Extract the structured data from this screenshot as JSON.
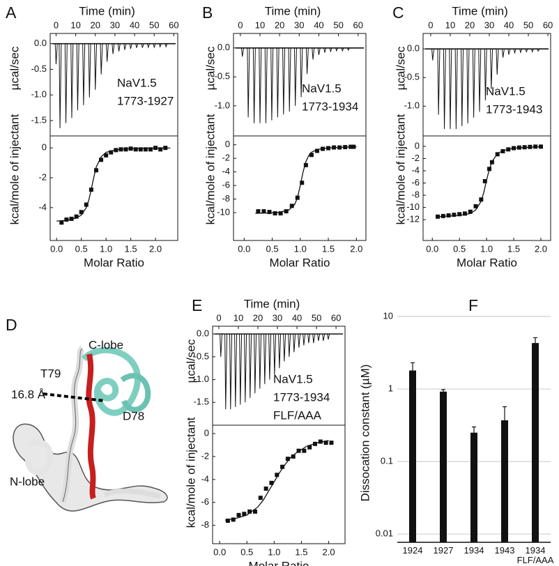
{
  "chart_data": [
    {
      "type": "itc",
      "panel": "A",
      "annotation": [
        "NaV1.5",
        "1773-1927"
      ],
      "thermogram": {
        "xlabel": "Time (min)",
        "ylabel": "µcal/sec",
        "x": [
          0,
          2,
          5,
          8,
          11,
          14,
          17,
          20,
          23,
          26,
          29,
          32,
          35,
          38,
          41,
          44,
          47,
          50,
          53,
          56
        ],
        "values": [
          -0.4,
          -1.65,
          -1.55,
          -1.45,
          -1.3,
          -1.2,
          -1.05,
          -0.9,
          -0.6,
          -0.35,
          -0.2,
          -0.15,
          -0.12,
          -0.1,
          -0.08,
          -0.08,
          -0.07,
          -0.07,
          -0.06,
          -0.06
        ],
        "xlim": [
          -3,
          62
        ],
        "xticks": [
          0,
          10,
          20,
          30,
          40,
          50,
          60
        ],
        "ylim": [
          -1.8,
          0.2
        ],
        "yticks": [
          {
            "value": 0,
            "label": "0.0"
          },
          -0.5,
          {
            "value": -1,
            "label": "-1.0"
          },
          -1.5
        ]
      },
      "isotherm": {
        "xlabel": "Molar Ratio",
        "ylabel": "kcal/mole of injectant",
        "x": [
          0.1,
          0.2,
          0.3,
          0.4,
          0.5,
          0.6,
          0.7,
          0.8,
          0.9,
          1.0,
          1.1,
          1.2,
          1.3,
          1.4,
          1.5,
          1.6,
          1.7,
          1.8,
          1.9,
          2.0,
          2.1,
          2.2
        ],
        "values": [
          -5.0,
          -4.8,
          -4.75,
          -4.6,
          -4.3,
          -3.8,
          -2.8,
          -1.5,
          -0.8,
          -0.5,
          -0.3,
          -0.15,
          -0.1,
          -0.1,
          -0.05,
          -0.1,
          -0.1,
          -0.1,
          -0.1,
          0.0,
          -0.1,
          0.0
        ],
        "fit": {
          "x": [
            0,
            0.2,
            0.4,
            0.5,
            0.6,
            0.65,
            0.7,
            0.75,
            0.8,
            0.9,
            1.0,
            1.2,
            1.5,
            2.0,
            2.3
          ],
          "values": [
            -4.9,
            -4.85,
            -4.7,
            -4.5,
            -4.0,
            -3.5,
            -2.8,
            -2.0,
            -1.3,
            -0.6,
            -0.3,
            -0.12,
            -0.05,
            -0.02,
            -0.01
          ]
        },
        "xlim": [
          -0.13,
          2.45
        ],
        "xticks": [
          {
            "value": 0,
            "label": "0.0"
          },
          0.5,
          {
            "value": 1,
            "label": "1.0"
          },
          1.5,
          {
            "value": 2,
            "label": "2.0"
          }
        ],
        "ylim": [
          -6.2,
          0.8
        ],
        "yticks": [
          0,
          -2,
          -4
        ]
      }
    },
    {
      "type": "itc",
      "panel": "B",
      "annotation": [
        "NaV1.5",
        "1773-1934"
      ],
      "thermogram": {
        "xlabel": "Time (min)",
        "ylabel": "µcal/sec",
        "x": [
          1,
          4,
          7,
          10,
          13,
          16,
          19,
          22,
          25,
          28,
          31,
          34,
          37,
          40,
          43,
          46,
          49,
          52,
          55
        ],
        "values": [
          -0.15,
          -1.2,
          -1.3,
          -1.3,
          -1.3,
          -1.25,
          -1.2,
          -1.15,
          -1.1,
          -1.0,
          -0.85,
          -0.45,
          -0.2,
          -0.12,
          -0.08,
          -0.06,
          -0.05,
          -0.05,
          -0.04
        ],
        "xlim": [
          -3.5,
          64
        ],
        "xticks": [
          0,
          10,
          20,
          30,
          40,
          50,
          60
        ],
        "ylim": [
          -1.52,
          0.25
        ],
        "yticks": [
          {
            "value": 0,
            "label": "0.0"
          },
          -0.5,
          {
            "value": -1,
            "label": "-1.0"
          }
        ]
      },
      "isotherm": {
        "xlabel": "Molar Ratio",
        "ylabel": "kcal/mole of injectant",
        "x": [
          0.25,
          0.35,
          0.45,
          0.55,
          0.65,
          0.75,
          0.85,
          0.95,
          1.03,
          1.1,
          1.2,
          1.3,
          1.4,
          1.5,
          1.6,
          1.7,
          1.8,
          1.9,
          1.95
        ],
        "values": [
          -9.8,
          -9.8,
          -9.9,
          -10.1,
          -10.1,
          -9.8,
          -9.0,
          -7.8,
          -5.6,
          -3.0,
          -1.5,
          -0.9,
          -0.6,
          -0.5,
          -0.4,
          -0.4,
          -0.35,
          -0.3,
          -0.3
        ],
        "fit": {
          "x": [
            0.2,
            0.6,
            0.8,
            0.9,
            0.95,
            1.0,
            1.05,
            1.1,
            1.15,
            1.2,
            1.3,
            1.5,
            2.0
          ],
          "values": [
            -10.1,
            -10.0,
            -9.6,
            -8.8,
            -7.8,
            -6.0,
            -4.0,
            -2.5,
            -1.6,
            -1.1,
            -0.7,
            -0.45,
            -0.3
          ]
        },
        "xlim": [
          -0.19,
          2.17
        ],
        "xticks": [
          {
            "value": 0,
            "label": "0.0"
          },
          0.5,
          {
            "value": 1,
            "label": "1.0"
          },
          1.5,
          {
            "value": 2,
            "label": "2.0"
          }
        ],
        "ylim": [
          -14.1,
          1.3
        ],
        "yticks": [
          0,
          -2,
          -4,
          -6,
          -8,
          -10
        ]
      }
    },
    {
      "type": "itc",
      "panel": "C",
      "annotation": [
        "NaV1.5",
        "1773-1943"
      ],
      "thermogram": {
        "xlabel": "Time (min)",
        "ylabel": "µcal/sec",
        "x": [
          1,
          4,
          7,
          10,
          13,
          16,
          19,
          22,
          25,
          28,
          31,
          34,
          37,
          40,
          43,
          46,
          49,
          52,
          55
        ],
        "values": [
          -0.2,
          -1.15,
          -1.4,
          -1.4,
          -1.4,
          -1.35,
          -1.3,
          -1.2,
          -1.1,
          -0.9,
          -0.7,
          -0.45,
          -0.15,
          -0.1,
          -0.07,
          -0.06,
          -0.05,
          -0.05,
          -0.04
        ],
        "xlim": [
          -3.9,
          61.4
        ],
        "xticks": [
          0,
          10,
          20,
          30,
          40,
          50,
          60
        ],
        "ylim": [
          -1.52,
          0.27
        ],
        "yticks": [
          {
            "value": 0,
            "label": "0.0"
          },
          -0.5,
          {
            "value": -1,
            "label": "-1.0"
          }
        ]
      },
      "isotherm": {
        "xlabel": "Molar Ratio",
        "ylabel": "kcal/mole of injectant",
        "x": [
          0.1,
          0.2,
          0.3,
          0.4,
          0.5,
          0.6,
          0.7,
          0.8,
          0.9,
          0.97,
          1.05,
          1.1,
          1.2,
          1.3,
          1.4,
          1.5,
          1.6,
          1.7,
          1.8,
          1.9,
          2.0
        ],
        "values": [
          -11.5,
          -11.4,
          -11.3,
          -11.2,
          -11.1,
          -11.0,
          -10.7,
          -9.8,
          -8.7,
          -5.7,
          -3.7,
          -2.6,
          -1.3,
          -0.8,
          -0.5,
          -0.3,
          -0.2,
          -0.15,
          -0.1,
          -0.05,
          -0.05
        ],
        "fit": {
          "x": [
            0.1,
            0.5,
            0.7,
            0.8,
            0.9,
            0.95,
            1.0,
            1.05,
            1.1,
            1.2,
            1.3,
            1.5,
            2.0
          ],
          "values": [
            -11.5,
            -11.3,
            -11.0,
            -10.4,
            -9.0,
            -7.5,
            -5.5,
            -3.8,
            -2.5,
            -1.2,
            -0.7,
            -0.3,
            -0.05
          ]
        },
        "xlim": [
          -0.17,
          2.18
        ],
        "xticks": [
          {
            "value": 0,
            "label": "0.0"
          },
          0.5,
          {
            "value": 1,
            "label": "1.0"
          },
          1.5,
          {
            "value": 2,
            "label": "2.0"
          }
        ],
        "ylim": [
          -15.4,
          1.7
        ],
        "yticks": [
          0,
          -2,
          -4,
          -6,
          -8,
          -10,
          -12
        ]
      }
    },
    {
      "type": "itc",
      "panel": "E",
      "annotation": [
        "NaV1.5",
        "1773-1934",
        "FLF/AAA"
      ],
      "thermogram": {
        "xlabel": "Time (min)",
        "ylabel": "µcal/sec",
        "x": [
          1,
          3.5,
          6,
          8.5,
          11,
          13.5,
          16,
          18.5,
          21,
          23.5,
          26,
          28.5,
          31,
          33.5,
          36,
          38.5,
          41,
          43.5,
          46,
          48.5,
          51,
          53.5,
          56
        ],
        "values": [
          -0.5,
          -1.65,
          -1.65,
          -1.6,
          -1.55,
          -1.5,
          -1.4,
          -1.3,
          -1.2,
          -1.1,
          -1.0,
          -0.9,
          -0.75,
          -0.6,
          -0.5,
          -0.4,
          -0.3,
          -0.25,
          -0.2,
          -0.2,
          -0.15,
          -0.15,
          -0.12
        ],
        "xlim": [
          -3.2,
          64.6
        ],
        "xticks": [
          0,
          10,
          20,
          30,
          40,
          50,
          60
        ],
        "ylim": [
          -2.0,
          0.17
        ],
        "yticks": [
          {
            "value": 0,
            "label": "0.0"
          },
          -0.5,
          {
            "value": -1,
            "label": "-1.0"
          },
          -1.5
        ]
      },
      "isotherm": {
        "xlabel": "Molar Ratio",
        "ylabel": "kcal/mole of injectant",
        "x": [
          0.15,
          0.25,
          0.35,
          0.45,
          0.55,
          0.65,
          0.75,
          0.85,
          0.95,
          1.05,
          1.15,
          1.25,
          1.35,
          1.45,
          1.55,
          1.65,
          1.75,
          1.85,
          1.95,
          2.05
        ],
        "values": [
          -7.6,
          -7.5,
          -7.1,
          -7.0,
          -6.8,
          -6.8,
          -5.6,
          -4.8,
          -4.3,
          -3.6,
          -2.9,
          -2.2,
          -2.0,
          -1.5,
          -1.5,
          -1.2,
          -0.9,
          -0.7,
          -0.8,
          -0.8
        ],
        "fit": {
          "x": [
            0.1,
            0.3,
            0.5,
            0.7,
            0.8,
            0.9,
            1.0,
            1.1,
            1.2,
            1.3,
            1.4,
            1.6,
            1.8,
            2.0
          ],
          "values": [
            -7.55,
            -7.4,
            -7.1,
            -6.4,
            -5.8,
            -5.0,
            -4.2,
            -3.4,
            -2.7,
            -2.1,
            -1.7,
            -1.1,
            -0.8,
            -0.6
          ]
        },
        "xlim": [
          -0.13,
          2.3
        ],
        "xticks": [
          {
            "value": 0,
            "label": "0.0"
          },
          0.5,
          {
            "value": 1,
            "label": "1.0"
          },
          1.5,
          {
            "value": 2,
            "label": "2.0"
          }
        ],
        "ylim": [
          -9.6,
          0.73
        ],
        "yticks": [
          0,
          -2,
          -4,
          -6,
          -8
        ]
      }
    },
    {
      "type": "bar",
      "panel": "F",
      "ylabel": "Dissocation constant (µM)",
      "categories": [
        "1924",
        "1927",
        "1934",
        "1943",
        "1934\nFLF/AAA"
      ],
      "values": [
        1.8,
        0.92,
        0.25,
        0.37,
        4.3
      ],
      "errors": [
        0.5,
        0.06,
        0.05,
        0.2,
        0.8
      ],
      "color": "#111111",
      "log": true,
      "grid": true,
      "ylim": [
        0.0077,
        10
      ],
      "yticks": [
        10,
        1,
        0.1,
        0.01
      ]
    }
  ],
  "structure": {
    "panel": "D",
    "c_lobe": "C-lobe",
    "t79": "T79",
    "distance": "16.8 Å",
    "d78": "D78",
    "n_lobe": "N-lobe"
  }
}
